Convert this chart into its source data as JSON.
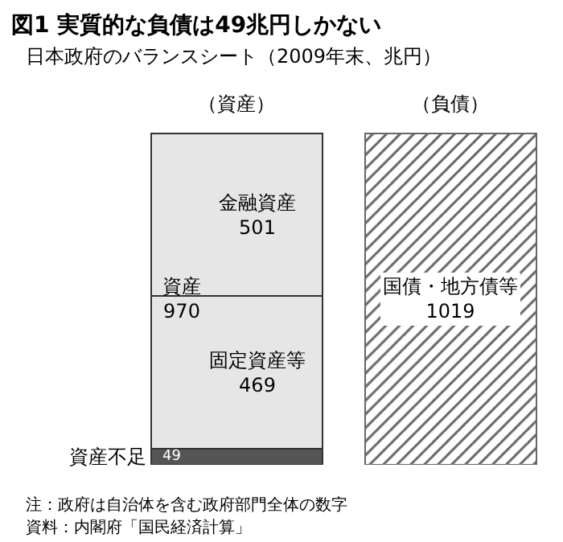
{
  "chart_data": {
    "type": "bar",
    "stacked": true,
    "title": "図1 実質的な負債は49兆円しかない",
    "subtitle": "日本政府のバランスシート（2009年末、兆円）",
    "categories": [
      "（資産）",
      "（負債）"
    ],
    "series": [
      {
        "name": "資産不足",
        "color": "#555555",
        "values": [
          49,
          null
        ]
      },
      {
        "name": "固定資産等",
        "color": "#e6e6e6",
        "values": [
          469,
          null
        ]
      },
      {
        "name": "金融資産",
        "color": "#e6e6e6",
        "values": [
          501,
          null
        ]
      },
      {
        "name": "国債・地方債等",
        "color": "#666666",
        "values": [
          null,
          1019
        ]
      }
    ],
    "data_labels": true,
    "legend": false,
    "annotations": [
      "資産\n970",
      "注：政府は自治体を含む政府部門全体の数字",
      "資料：内閣府「国民経済計算」"
    ]
  }
}
